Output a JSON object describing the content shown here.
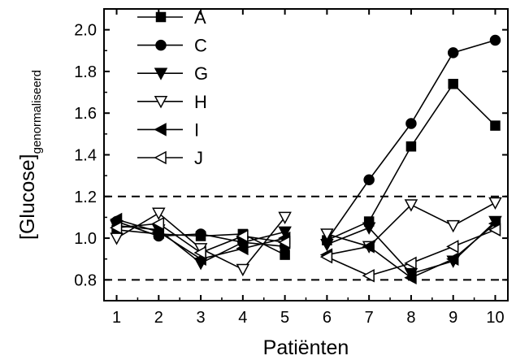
{
  "chart_data": {
    "type": "line",
    "xlabel": "Patiënten",
    "ylabel_main": "[Glucose]",
    "ylabel_sub": "genormaliseerd",
    "xlim": [
      0.7,
      10.3
    ],
    "ylim": [
      0.7,
      2.1
    ],
    "x_ticks": [
      1,
      2,
      3,
      4,
      5,
      6,
      7,
      8,
      9,
      10
    ],
    "y_ticks": [
      0.8,
      1.0,
      1.2,
      1.4,
      1.6,
      1.8,
      2.0
    ],
    "y_tick_labels": [
      "0.8",
      "1.0",
      "1.2",
      "1.4",
      "1.6",
      "1.8",
      "2.0"
    ],
    "reference_lines": [
      0.8,
      1.2
    ],
    "grid": false,
    "legend_position": "top-left",
    "series": [
      {
        "name": "A",
        "marker": "square",
        "filled": true,
        "x": [
          1,
          2,
          3,
          4,
          5,
          6,
          7,
          8,
          9,
          10
        ],
        "y": [
          1.04,
          1.02,
          1.01,
          1.02,
          0.92,
          0.99,
          1.08,
          1.44,
          1.74,
          1.54
        ]
      },
      {
        "name": "C",
        "marker": "circle",
        "filled": true,
        "x": [
          1,
          2,
          3,
          4,
          5,
          6,
          7,
          8,
          9,
          10
        ],
        "y": [
          1.08,
          1.01,
          1.02,
          0.98,
          0.96,
          0.99,
          1.28,
          1.55,
          1.89,
          1.95
        ]
      },
      {
        "name": "G",
        "marker": "triangle-down",
        "filled": true,
        "x": [
          1,
          2,
          3,
          4,
          5,
          6,
          7,
          8,
          9,
          10
        ],
        "y": [
          1.06,
          1.04,
          0.88,
          0.98,
          1.03,
          0.97,
          1.05,
          0.83,
          0.89,
          1.08
        ]
      },
      {
        "name": "H",
        "marker": "triangle-down",
        "filled": false,
        "x": [
          1,
          2,
          3,
          4,
          5,
          6,
          7,
          8,
          9,
          10
        ],
        "y": [
          1.0,
          1.12,
          0.95,
          0.85,
          1.1,
          1.02,
          0.96,
          1.16,
          1.06,
          1.17
        ]
      },
      {
        "name": "I",
        "marker": "triangle-left",
        "filled": true,
        "x": [
          1,
          2,
          3,
          4,
          5,
          6,
          7,
          8,
          9,
          10
        ],
        "y": [
          1.09,
          1.03,
          0.9,
          0.95,
          1.0,
          0.92,
          0.96,
          0.81,
          0.9,
          1.07
        ]
      },
      {
        "name": "J",
        "marker": "triangle-left",
        "filled": false,
        "x": [
          1,
          2,
          3,
          4,
          5,
          6,
          7,
          8,
          9,
          10
        ],
        "y": [
          1.05,
          1.07,
          0.93,
          1.01,
          0.98,
          0.91,
          0.82,
          0.88,
          0.96,
          1.04
        ]
      }
    ]
  }
}
